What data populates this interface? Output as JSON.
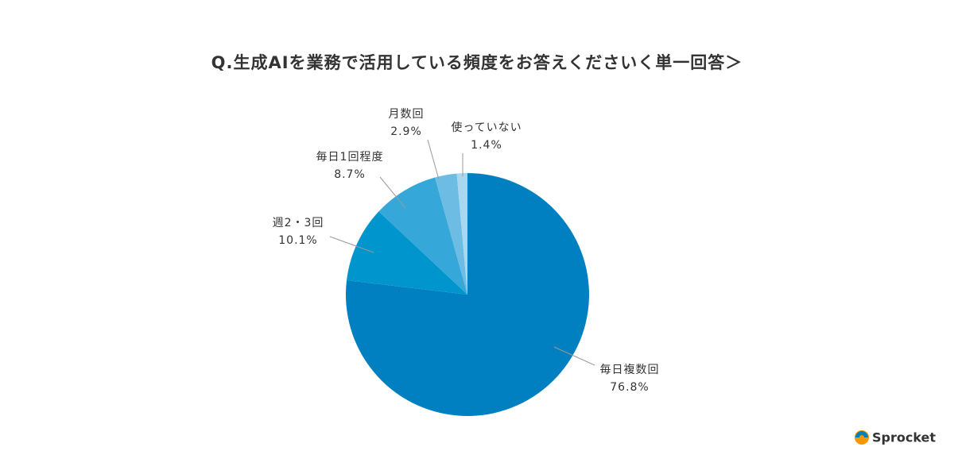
{
  "chart_data": {
    "type": "pie",
    "title": "Q.生成AIを業務で活用している頻度をお答えくださいく単一回答＞",
    "categories": [
      "毎日複数回",
      "週2・3回",
      "毎日1回程度",
      "月数回",
      "使っていない"
    ],
    "values": [
      76.8,
      10.1,
      8.7,
      2.9,
      1.4
    ],
    "value_labels": [
      "76.8%",
      "10.1%",
      "8.7%",
      "2.9%",
      "1.4%"
    ],
    "colors": [
      "#0080c0",
      "#0096cd",
      "#35a8d9",
      "#6cbce3",
      "#a9d7ef"
    ],
    "start_angle": 0,
    "direction": "clockwise"
  },
  "brand": "Sprocket"
}
